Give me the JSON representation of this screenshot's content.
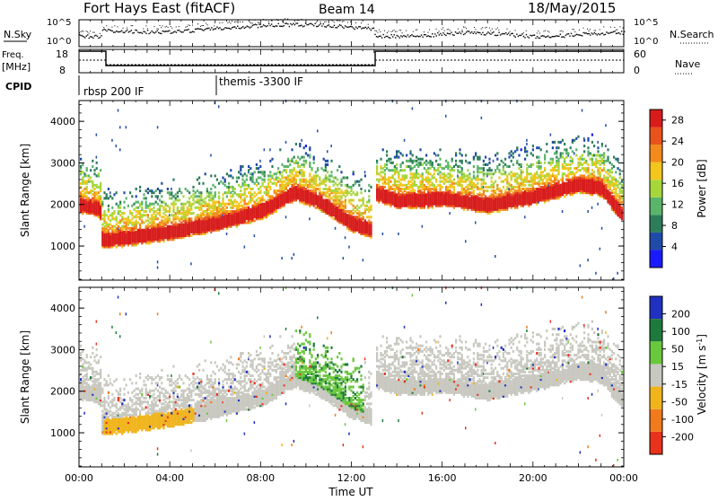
{
  "header": {
    "station": "Fort Hays East (fitACF)",
    "beam": "Beam 14",
    "date": "18/May/2015"
  },
  "noise_panel": {
    "left_label": "N.Sky",
    "right_label": "N.Search",
    "left_ticks": [
      "10^5",
      "10^0"
    ],
    "right_ticks": [
      "10^5",
      "10^0"
    ]
  },
  "freq_panel": {
    "left_label_1": "Freq.",
    "left_label_2": "[MHz]",
    "right_label": "Nave",
    "left_ticks": [
      "18",
      "8"
    ],
    "right_ticks": [
      "60",
      "0"
    ]
  },
  "cpid": {
    "label": "CPID",
    "segments": [
      {
        "name": "rbsp 200 IF",
        "start_hour": 0
      },
      {
        "name": "themis -3300 IF",
        "start_hour": 6
      }
    ]
  },
  "x_axis": {
    "label": "Time UT",
    "ticks": [
      "00:00",
      "04:00",
      "08:00",
      "12:00",
      "16:00",
      "20:00",
      "00:00"
    ],
    "range_hours": [
      0,
      24
    ]
  },
  "chart_data": [
    {
      "type": "heatmap",
      "name": "power",
      "ylabel": "Slant Range [km]",
      "yticks": [
        1000,
        2000,
        3000,
        4000
      ],
      "ylim": [
        180,
        4500
      ],
      "colorbar_label": "Power [dB]",
      "colorbar_ticks": [
        4,
        8,
        12,
        16,
        20,
        24,
        28
      ],
      "colorbar_range": [
        0,
        30
      ],
      "colors": [
        "#1a1aff",
        "#1f4ba8",
        "#2d7d5a",
        "#5ab46a",
        "#a6d63a",
        "#f2c61c",
        "#f28a1c",
        "#e8521c",
        "#d81c1c"
      ]
    },
    {
      "type": "heatmap",
      "name": "velocity",
      "ylabel": "Slant Range [km]",
      "yticks": [
        1000,
        2000,
        3000,
        4000
      ],
      "ylim": [
        180,
        4500
      ],
      "colorbar_label": "Velocity [m s^-1]",
      "colorbar_ticks": [
        200,
        100,
        50,
        15,
        -15,
        -50,
        -100,
        -200
      ],
      "colorbar_range": [
        -250,
        250
      ],
      "colors": [
        "#2030c0",
        "#1e7a3c",
        "#6ac83c",
        "#c8c8c0",
        "#f0b41c",
        "#f07a1c",
        "#e8321c"
      ]
    }
  ],
  "band_trace": [
    {
      "hour": 0.0,
      "range_km": 2000
    },
    {
      "hour": 0.9,
      "range_km": 1900
    },
    {
      "hour": 1.0,
      "range_km": 1150
    },
    {
      "hour": 2.0,
      "range_km": 1200
    },
    {
      "hour": 4.0,
      "range_km": 1350
    },
    {
      "hour": 6.0,
      "range_km": 1550
    },
    {
      "hour": 8.0,
      "range_km": 1850
    },
    {
      "hour": 9.5,
      "range_km": 2300
    },
    {
      "hour": 10.5,
      "range_km": 2100
    },
    {
      "hour": 12.0,
      "range_km": 1550
    },
    {
      "hour": 12.9,
      "range_km": 1400
    },
    {
      "hour": 13.0,
      "range_km": 2300
    },
    {
      "hour": 14.0,
      "range_km": 2100
    },
    {
      "hour": 16.0,
      "range_km": 2150
    },
    {
      "hour": 18.0,
      "range_km": 2000
    },
    {
      "hour": 20.0,
      "range_km": 2200
    },
    {
      "hour": 22.0,
      "range_km": 2500
    },
    {
      "hour": 23.0,
      "range_km": 2400
    },
    {
      "hour": 24.0,
      "range_km": 1700
    }
  ]
}
